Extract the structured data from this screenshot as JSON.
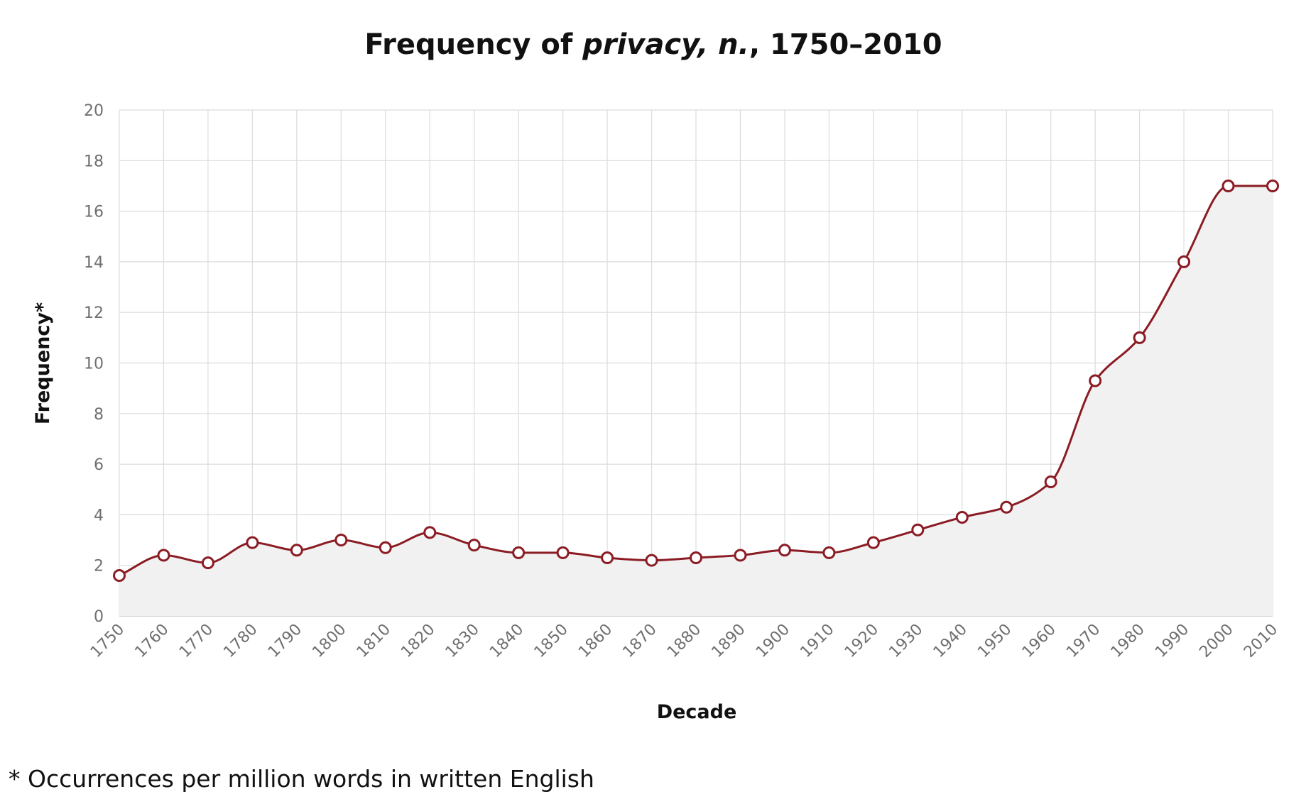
{
  "chart_data": {
    "type": "area",
    "title": {
      "prefix": "Frequency of ",
      "emphasis": "privacy, n.",
      "suffix": ", 1750–2010"
    },
    "xlabel": "Decade",
    "ylabel": "Frequency*",
    "ylim": [
      0,
      20
    ],
    "yticks": [
      0,
      2,
      4,
      6,
      8,
      10,
      12,
      14,
      16,
      18,
      20
    ],
    "grid": true,
    "x": [
      "1750",
      "1760",
      "1770",
      "1780",
      "1790",
      "1800",
      "1810",
      "1820",
      "1830",
      "1840",
      "1850",
      "1860",
      "1870",
      "1880",
      "1890",
      "1900",
      "1910",
      "1920",
      "1930",
      "1940",
      "1950",
      "1960",
      "1970",
      "1980",
      "1990",
      "2000",
      "2010"
    ],
    "values": [
      1.6,
      2.4,
      2.1,
      2.9,
      2.6,
      3.0,
      2.7,
      3.3,
      2.8,
      2.5,
      2.5,
      2.3,
      2.2,
      2.3,
      2.4,
      2.6,
      2.5,
      2.9,
      3.4,
      3.9,
      4.3,
      5.3,
      9.3,
      11.0,
      14.0,
      17.0,
      17.0
    ],
    "colors": {
      "line": "#8b1c24",
      "area": "#f1f1f1",
      "grid": "#dcdcdc",
      "marker_fill": "#ffffff"
    }
  },
  "footnote": "* Occurrences per million words in written English"
}
